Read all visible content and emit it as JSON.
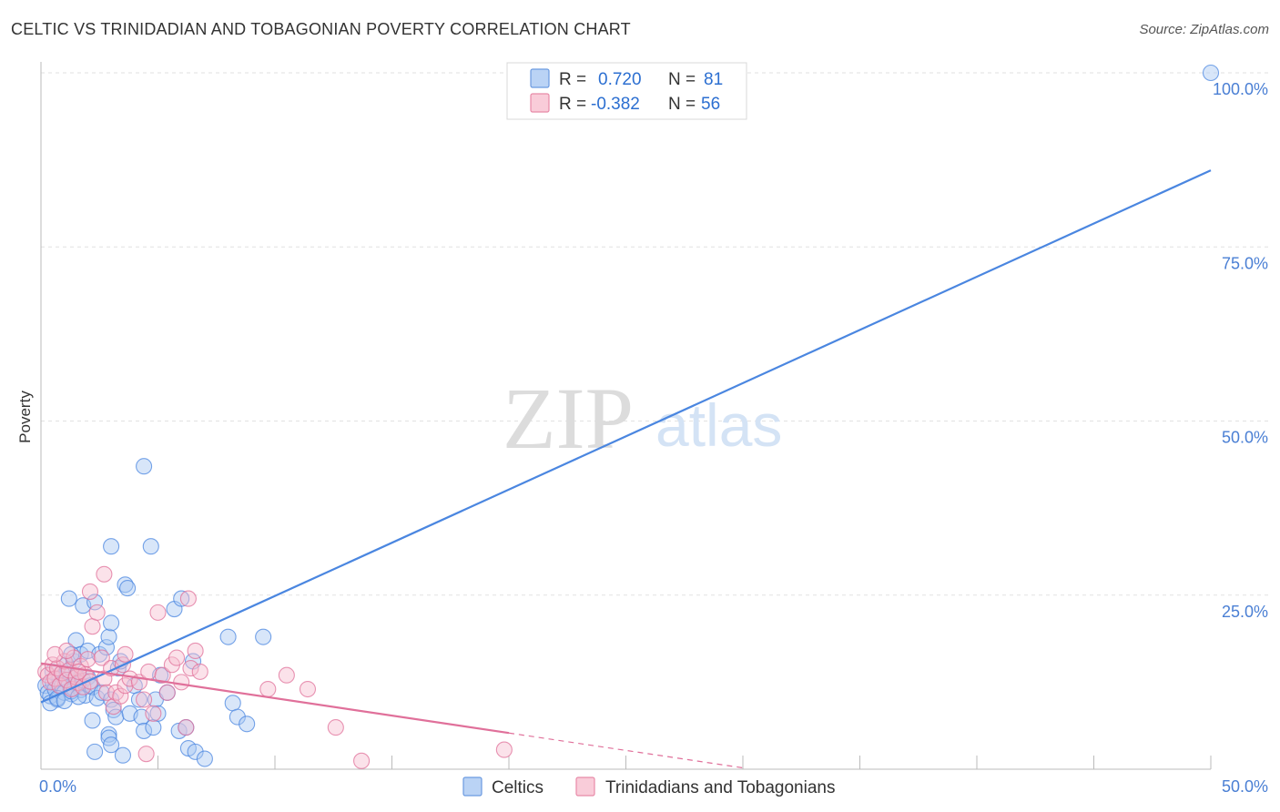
{
  "header": {
    "title": "CELTIC VS TRINIDADIAN AND TOBAGONIAN POVERTY CORRELATION CHART",
    "source": "Source: ZipAtlas.com"
  },
  "watermark": {
    "zip": "ZIP",
    "atlas": "atlas"
  },
  "legend_top": {
    "rows": [
      {
        "r_label": "R =",
        "r_value": "0.720",
        "n_label": "N =",
        "n_value": "81",
        "color": "#a9c8f2",
        "stroke": "#6b9ae0"
      },
      {
        "r_label": "R =",
        "r_value": "-0.382",
        "n_label": "N =",
        "n_value": "56",
        "color": "#f7bfd0",
        "stroke": "#e88aa8"
      }
    ]
  },
  "legend_bottom": {
    "items": [
      {
        "label": "Celtics",
        "color": "#a9c8f2",
        "stroke": "#6b9ae0"
      },
      {
        "label": "Trinidadians and Tobagonians",
        "color": "#f7bfd0",
        "stroke": "#e88aa8"
      }
    ]
  },
  "chart_data": {
    "type": "scatter",
    "title": "CELTIC VS TRINIDADIAN AND TOBAGONIAN POVERTY CORRELATION CHART",
    "xlabel": "",
    "ylabel": "Poverty",
    "xlim": [
      0,
      50
    ],
    "ylim": [
      0,
      100
    ],
    "x_tick_labels": [
      "0.0%",
      "50.0%"
    ],
    "y_ticks": [
      25,
      50,
      75,
      100
    ],
    "y_tick_labels": [
      "25.0%",
      "50.0%",
      "75.0%",
      "100.0%"
    ],
    "grid": true,
    "legend_position": "top-center",
    "series": [
      {
        "name": "Celtics",
        "color": "#4a86e0",
        "fill": "#a9c8f2",
        "r": 0.72,
        "n": 81,
        "trend": {
          "x": [
            0,
            50
          ],
          "y": [
            9.6,
            86.0
          ],
          "dashed_from": null
        },
        "points": [
          [
            0.2,
            12
          ],
          [
            0.3,
            11
          ],
          [
            0.4,
            10.5
          ],
          [
            0.5,
            12.5
          ],
          [
            0.6,
            11.5
          ],
          [
            0.7,
            10
          ],
          [
            0.8,
            13
          ],
          [
            0.9,
            12
          ],
          [
            1.0,
            11
          ],
          [
            1.1,
            14
          ],
          [
            1.2,
            12.5
          ],
          [
            1.3,
            10.8
          ],
          [
            1.4,
            11.6
          ],
          [
            1.5,
            13.4
          ],
          [
            1.6,
            12.2
          ],
          [
            1.7,
            11.4
          ],
          [
            1.8,
            12.8
          ],
          [
            1.9,
            10.6
          ],
          [
            2.0,
            13.2
          ],
          [
            2.1,
            12
          ],
          [
            0.4,
            9.5
          ],
          [
            0.7,
            10.2
          ],
          [
            1.0,
            9.8
          ],
          [
            1.3,
            11.2
          ],
          [
            1.6,
            10.4
          ],
          [
            2.2,
            11.8
          ],
          [
            2.4,
            10.2
          ],
          [
            0.5,
            14
          ],
          [
            1.1,
            15
          ],
          [
            1.4,
            15.5
          ],
          [
            1.2,
            24.5
          ],
          [
            1.5,
            18.5
          ],
          [
            1.8,
            23.5
          ],
          [
            1.7,
            16.5
          ],
          [
            2.0,
            17.0
          ],
          [
            2.3,
            24
          ],
          [
            2.5,
            16.5
          ],
          [
            2.6,
            11
          ],
          [
            2.8,
            17.5
          ],
          [
            2.9,
            19.0
          ],
          [
            3.0,
            10
          ],
          [
            3.1,
            8.5
          ],
          [
            3.2,
            7.5
          ],
          [
            3.3,
            14.5
          ],
          [
            3.4,
            15.5
          ],
          [
            3.0,
            21
          ],
          [
            3.0,
            32
          ],
          [
            2.9,
            5
          ],
          [
            3.6,
            26.5
          ],
          [
            3.7,
            26.0
          ],
          [
            3.8,
            8
          ],
          [
            4.0,
            12
          ],
          [
            4.2,
            10
          ],
          [
            4.3,
            7.5
          ],
          [
            4.4,
            5.5
          ],
          [
            4.7,
            32
          ],
          [
            4.8,
            6
          ],
          [
            4.9,
            10
          ],
          [
            5.0,
            8
          ],
          [
            5.1,
            13.5
          ],
          [
            4.4,
            43.5
          ],
          [
            5.4,
            11
          ],
          [
            5.7,
            23
          ],
          [
            5.9,
            5.5
          ],
          [
            6.0,
            24.5
          ],
          [
            6.2,
            6
          ],
          [
            6.3,
            3
          ],
          [
            6.6,
            2.5
          ],
          [
            6.5,
            15.5
          ],
          [
            7.0,
            1.5
          ],
          [
            2.2,
            7
          ],
          [
            2.9,
            4.5
          ],
          [
            3.0,
            3.5
          ],
          [
            2.3,
            2.5
          ],
          [
            3.5,
            2
          ],
          [
            8.0,
            19.0
          ],
          [
            8.2,
            9.5
          ],
          [
            8.4,
            7.5
          ],
          [
            8.8,
            6.5
          ],
          [
            9.5,
            19.0
          ],
          [
            1.3,
            16.5
          ]
        ],
        "outliers": [
          [
            50,
            100
          ]
        ]
      },
      {
        "name": "Trinidadians and Tobagonians",
        "color": "#e0709a",
        "fill": "#f7bfd0",
        "r": -0.382,
        "n": 56,
        "trend": {
          "x": [
            0,
            30
          ],
          "y": [
            15.2,
            0.2
          ],
          "dashed_from": 20
        },
        "points": [
          [
            0.2,
            14
          ],
          [
            0.3,
            13.5
          ],
          [
            0.4,
            12.5
          ],
          [
            0.5,
            15
          ],
          [
            0.6,
            13
          ],
          [
            0.7,
            14.5
          ],
          [
            0.8,
            12
          ],
          [
            0.9,
            13.8
          ],
          [
            1.0,
            15.5
          ],
          [
            1.1,
            12.8
          ],
          [
            1.2,
            14.2
          ],
          [
            1.3,
            11.5
          ],
          [
            1.4,
            16
          ],
          [
            1.5,
            13.2
          ],
          [
            1.6,
            12.4
          ],
          [
            1.7,
            14.8
          ],
          [
            1.8,
            11.8
          ],
          [
            1.9,
            13.6
          ],
          [
            2.0,
            15.8
          ],
          [
            2.1,
            12.6
          ],
          [
            0.6,
            16.5
          ],
          [
            1.1,
            17
          ],
          [
            1.6,
            14
          ],
          [
            2.2,
            20.5
          ],
          [
            2.4,
            22.5
          ],
          [
            2.6,
            16
          ],
          [
            2.7,
            13
          ],
          [
            2.8,
            11
          ],
          [
            3.0,
            14.5
          ],
          [
            3.1,
            9
          ],
          [
            3.2,
            11
          ],
          [
            3.4,
            10.5
          ],
          [
            3.5,
            15
          ],
          [
            3.6,
            12
          ],
          [
            2.1,
            25.5
          ],
          [
            2.7,
            28
          ],
          [
            3.6,
            16.5
          ],
          [
            3.8,
            13
          ],
          [
            4.2,
            12.5
          ],
          [
            4.4,
            10
          ],
          [
            4.6,
            14
          ],
          [
            4.8,
            8
          ],
          [
            5.0,
            22.5
          ],
          [
            5.2,
            13.5
          ],
          [
            5.4,
            11
          ],
          [
            5.6,
            15
          ],
          [
            5.8,
            16
          ],
          [
            6.0,
            12.5
          ],
          [
            6.2,
            6
          ],
          [
            6.4,
            14.5
          ],
          [
            6.3,
            24.5
          ],
          [
            6.6,
            17
          ],
          [
            6.8,
            14
          ],
          [
            9.7,
            11.5
          ],
          [
            10.5,
            13.5
          ],
          [
            12.6,
            6
          ]
        ],
        "outliers": [
          [
            13.7,
            1.2
          ],
          [
            19.8,
            2.8
          ],
          [
            4.5,
            2.2
          ],
          [
            11.4,
            11.5
          ]
        ]
      }
    ]
  }
}
